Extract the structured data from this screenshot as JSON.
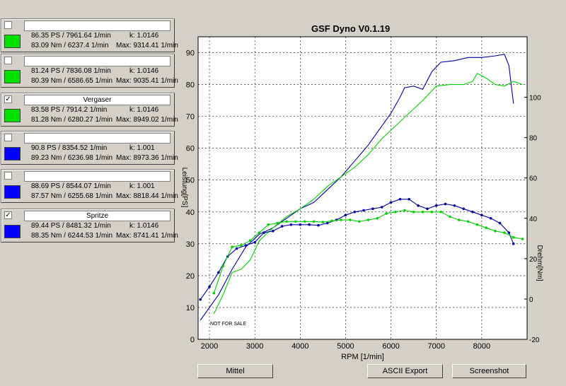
{
  "app_title": "GSF Dyno V0.1.19",
  "runs": [
    {
      "checked": false,
      "name": "",
      "color": "#00e000",
      "line1": "86.35 PS / 7961.64 1/min",
      "k": "k: 1.0146",
      "line2": "83.09 Nm / 6237.4 1/min",
      "max": "Max: 9314.41 1/min"
    },
    {
      "checked": false,
      "name": "",
      "color": "#00e000",
      "line1": "81.24 PS / 7836.08 1/min",
      "k": "k: 1.0146",
      "line2": "80.39 Nm / 6586.65 1/min",
      "max": "Max: 9035.41 1/min"
    },
    {
      "checked": true,
      "name": "Vergaser",
      "color": "#00e000",
      "line1": "83.58 PS / 7914.2 1/min",
      "k": "k: 1.0146",
      "line2": "81.28 Nm / 6280.27 1/min",
      "max": "Max: 8949.02 1/min"
    },
    {
      "checked": false,
      "name": "",
      "color": "#0000ff",
      "line1": "90.8 PS / 8354.52 1/min",
      "k": "k: 1.001",
      "line2": "89.23 Nm / 6236.98 1/min",
      "max": "Max: 8973.36 1/min"
    },
    {
      "checked": false,
      "name": "",
      "color": "#0000ff",
      "line1": "88.69 PS / 8544.07 1/min",
      "k": "k: 1.001",
      "line2": "87.57 Nm / 6255.68 1/min",
      "max": "Max: 8818.44 1/min"
    },
    {
      "checked": true,
      "name": "Spritze",
      "color": "#0000ff",
      "line1": "89.44 PS / 8481.32 1/min",
      "k": "k: 1.0146",
      "line2": "88.35 Nm / 6244.53 1/min",
      "max": "Max: 8741.41 1/min"
    }
  ],
  "buttons": {
    "mittel": "Mittel",
    "ascii_export": "ASCII Export",
    "screenshot": "Screenshot"
  },
  "chart_data": {
    "type": "line",
    "title": "GSF Dyno V0.1.19",
    "xlabel": "RPM [1/min]",
    "ylabel_left": "Leistung[PS]",
    "ylabel_right": "Drehm[Nm]",
    "watermark": "NOT FOR SALE",
    "xlim": [
      1750,
      9000
    ],
    "ylim_left": [
      0,
      95
    ],
    "ylim_right": [
      -20,
      130
    ],
    "x_ticks": [
      2000,
      3000,
      4000,
      5000,
      6000,
      7000,
      8000
    ],
    "y_ticks_left": [
      0,
      10,
      20,
      30,
      40,
      50,
      60,
      70,
      80,
      90
    ],
    "y_ticks_right": [
      -20,
      0,
      20,
      40,
      60,
      80,
      100
    ],
    "y_tick_labels_right": [
      "-20",
      "0",
      "20",
      "40",
      "60",
      "80",
      "100"
    ],
    "grid": true,
    "series": [
      {
        "color": "#0000a0",
        "axis": "left",
        "markers": false,
        "x": [
          1800,
          2000,
          2200,
          2500,
          2800,
          3100,
          3400,
          3700,
          4000,
          4300,
          4600,
          4900,
          5200,
          5500,
          5800,
          6000,
          6200,
          6300,
          6500,
          6700,
          6900,
          7100,
          7400,
          7700,
          8000,
          8300,
          8500,
          8600,
          8700
        ],
        "y": [
          6,
          10,
          14,
          22,
          29,
          33,
          35,
          38,
          41,
          43,
          47,
          51,
          56,
          61,
          67,
          71,
          76,
          79,
          79.5,
          78.5,
          84,
          87,
          87.5,
          88.5,
          88.5,
          89,
          89.5,
          86,
          74
        ]
      },
      {
        "color": "#00d000",
        "axis": "left",
        "markers": false,
        "x": [
          2100,
          2300,
          2500,
          2700,
          2900,
          3100,
          3400,
          3700,
          4000,
          4300,
          4600,
          4900,
          5200,
          5500,
          5800,
          6100,
          6400,
          6700,
          7000,
          7300,
          7600,
          7800,
          7900,
          8100,
          8300,
          8500,
          8700,
          8800,
          8900
        ],
        "y": [
          8,
          14,
          21,
          22,
          25,
          31,
          35,
          38.5,
          41,
          44,
          48,
          51,
          54,
          58,
          63,
          67,
          71,
          75,
          79.5,
          80,
          80,
          81,
          83.5,
          82,
          80,
          79.5,
          81,
          80.5,
          80
        ]
      },
      {
        "color": "#0000a0",
        "axis": "left",
        "markers": true,
        "x": [
          1800,
          2000,
          2200,
          2400,
          2600,
          2800,
          3000,
          3200,
          3400,
          3600,
          3800,
          4000,
          4200,
          4400,
          4600,
          4800,
          5000,
          5200,
          5400,
          5600,
          5800,
          6000,
          6200,
          6400,
          6600,
          6800,
          7000,
          7200,
          7400,
          7600,
          7800,
          8000,
          8200,
          8400,
          8600,
          8700
        ],
        "y": [
          12.5,
          16.5,
          21,
          26,
          28.5,
          29.5,
          30.5,
          33.5,
          34,
          35.5,
          36,
          36,
          36,
          35.8,
          36.5,
          37.5,
          39,
          40,
          40.5,
          41,
          41.5,
          43,
          44,
          44,
          42,
          41,
          42,
          42.5,
          42,
          41,
          40,
          39,
          38,
          36.5,
          33.5,
          30
        ]
      },
      {
        "color": "#00d000",
        "axis": "left",
        "markers": true,
        "x": [
          2100,
          2300,
          2500,
          2700,
          2900,
          3100,
          3300,
          3500,
          3700,
          3900,
          4100,
          4300,
          4500,
          4700,
          4900,
          5100,
          5300,
          5500,
          5700,
          5900,
          6100,
          6300,
          6500,
          6700,
          6900,
          7100,
          7300,
          7500,
          7700,
          7900,
          8100,
          8300,
          8500,
          8700,
          8900
        ],
        "y": [
          14.5,
          23,
          29,
          29.5,
          31,
          33.5,
          36,
          36.5,
          37,
          37,
          37,
          37,
          36.8,
          37.2,
          37.5,
          37.5,
          37,
          37.5,
          38,
          39.5,
          40,
          40.5,
          40,
          40,
          40,
          40,
          38.5,
          37.5,
          37,
          36,
          35,
          34,
          33.5,
          32,
          31.5
        ]
      }
    ]
  }
}
